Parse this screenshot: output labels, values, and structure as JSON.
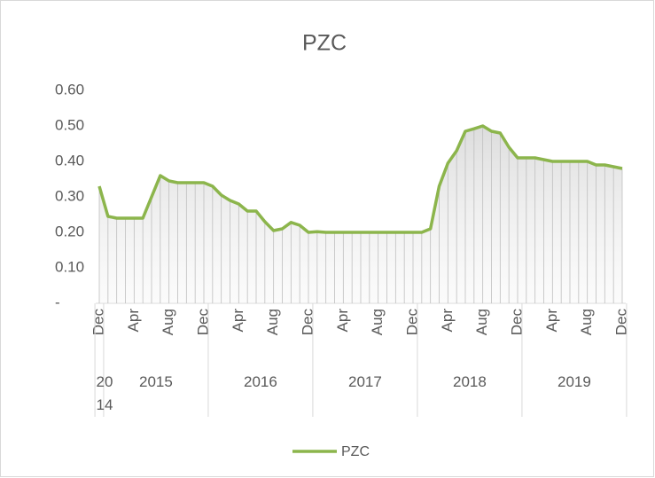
{
  "chart_data": {
    "type": "line",
    "title": "PZC",
    "categories": [
      "Dec",
      null,
      null,
      null,
      "Apr",
      null,
      null,
      null,
      "Aug",
      null,
      null,
      null,
      "Dec",
      null,
      null,
      null,
      "Apr",
      null,
      null,
      null,
      "Aug",
      null,
      null,
      null,
      "Dec",
      null,
      null,
      null,
      "Apr",
      null,
      null,
      null,
      "Aug",
      null,
      null,
      null,
      "Dec",
      null,
      null,
      null,
      "Apr",
      null,
      null,
      null,
      "Aug",
      null,
      null,
      null,
      "Dec",
      null,
      null,
      null,
      "Apr",
      null,
      null,
      null,
      "Aug",
      null,
      null,
      null,
      "Dec"
    ],
    "x_groups": [
      {
        "label": "2014",
        "count": 1
      },
      {
        "label": "2015",
        "count": 12
      },
      {
        "label": "2016",
        "count": 12
      },
      {
        "label": "2017",
        "count": 12
      },
      {
        "label": "2018",
        "count": 12
      },
      {
        "label": "2019",
        "count": 12
      }
    ],
    "series": [
      {
        "name": "PZC",
        "color": "#8cb54c",
        "values": [
          0.33,
          0.245,
          0.24,
          0.24,
          0.24,
          0.24,
          0.3,
          0.36,
          0.345,
          0.34,
          0.34,
          0.34,
          0.34,
          0.33,
          0.305,
          0.29,
          0.28,
          0.26,
          0.26,
          0.23,
          0.205,
          0.21,
          0.228,
          0.22,
          0.2,
          0.202,
          0.2,
          0.2,
          0.2,
          0.2,
          0.2,
          0.2,
          0.2,
          0.2,
          0.2,
          0.2,
          0.2,
          0.2,
          0.21,
          0.33,
          0.395,
          0.43,
          0.485,
          0.492,
          0.5,
          0.485,
          0.48,
          0.44,
          0.41,
          0.41,
          0.41,
          0.405,
          0.4,
          0.4,
          0.4,
          0.4,
          0.4,
          0.39,
          0.39,
          0.385,
          0.38
        ]
      }
    ],
    "ylim": [
      0,
      0.6
    ],
    "yticks": [
      {
        "value": 0,
        "label": "-"
      },
      {
        "value": 0.1,
        "label": "0.10"
      },
      {
        "value": 0.2,
        "label": "0.20"
      },
      {
        "value": 0.3,
        "label": "0.30"
      },
      {
        "value": 0.4,
        "label": "0.40"
      },
      {
        "value": 0.5,
        "label": "0.50"
      },
      {
        "value": 0.6,
        "label": "0.60"
      }
    ],
    "legend": "bottom",
    "drop_lines": true
  }
}
